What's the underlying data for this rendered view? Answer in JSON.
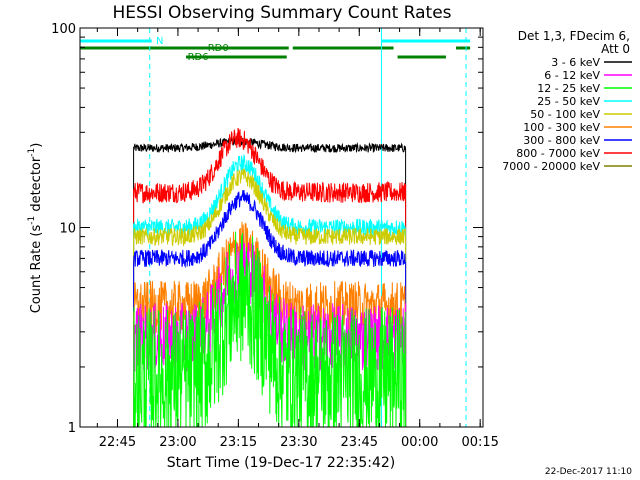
{
  "chart_data": {
    "type": "line",
    "title": "HESSI Observing Summary Count Rates",
    "xlabel": "Start Time (19-Dec-17 22:35:42)",
    "ylabel": "Count Rate (s",
    "ylabel_sup": "-1",
    "ylabel_mid": " detector",
    "ylabel_end": ")",
    "y_scale": "log",
    "ylim": [
      1,
      100
    ],
    "xlim": [
      "22:35:42",
      "00:15:42"
    ],
    "x_ticks": [
      "22:45",
      "23:00",
      "23:15",
      "23:30",
      "23:45",
      "00:00",
      "00:15"
    ],
    "y_ticks": [
      "1",
      "10",
      "100"
    ],
    "data_start": "22:49:00",
    "data_end": "23:56:30",
    "footer_date": "22-Dec-2017 11:10",
    "legend": {
      "header_line1": "Det 1,3, FDecim 6,",
      "header_line2": "Att 0",
      "entries": [
        {
          "label": "3 - 6 keV",
          "color": "#000000"
        },
        {
          "label": "6 - 12 keV",
          "color": "#ff00ff"
        },
        {
          "label": "12 - 25 keV",
          "color": "#00ff00"
        },
        {
          "label": "25 - 50 keV",
          "color": "#00ffff"
        },
        {
          "label": "50 - 100 keV",
          "color": "#cccc00"
        },
        {
          "label": "100 - 300 keV",
          "color": "#ff8000"
        },
        {
          "label": "300 - 800 keV",
          "color": "#0000ff"
        },
        {
          "label": "800 - 7000 keV",
          "color": "#ff0000"
        },
        {
          "label": "7000 - 20000 keV",
          "color": "#808000"
        }
      ]
    },
    "flags": [
      {
        "label": "N",
        "color": "#00ffff",
        "segments": [
          [
            "22:35:42",
            "22:53:30"
          ],
          [
            "23:50:30",
            "00:12:30"
          ]
        ]
      },
      {
        "label": "RD0",
        "color": "#008000",
        "segments": [
          [
            "22:35:42",
            "23:27:30"
          ],
          [
            "23:28:30",
            "23:53:30"
          ],
          [
            "00:09:00",
            "00:12:30"
          ]
        ]
      },
      {
        "label": "RD6",
        "color": "#008000",
        "segments": [
          [
            "23:02:00",
            "23:27:00"
          ],
          [
            "23:54:30",
            "00:06:30"
          ]
        ]
      }
    ],
    "vlines": [
      {
        "time": "22:53:00",
        "color": "#00ffff",
        "style": "dashed"
      },
      {
        "time": "23:50:30",
        "color": "#00ffff",
        "style": "solid"
      },
      {
        "time": "00:11:30",
        "color": "#00ffff",
        "style": "dashed"
      }
    ],
    "series": [
      {
        "name": "3 - 6 keV",
        "color": "#000000",
        "base": 25,
        "peak": 27,
        "peak_time": "23:15:00",
        "width_min": 8,
        "noise": 0.05
      },
      {
        "name": "800 - 7000 keV",
        "color": "#ff0000",
        "base": 15,
        "peak": 28,
        "peak_time": "23:15:00",
        "width_min": 6,
        "noise": 0.12
      },
      {
        "name": "25 - 50 keV",
        "color": "#00ffff",
        "base": 10,
        "peak": 21,
        "peak_time": "23:16:00",
        "width_min": 6,
        "noise": 0.1
      },
      {
        "name": "50 - 100 keV",
        "color": "#cccc00",
        "base": 9,
        "peak": 18,
        "peak_time": "23:16:00",
        "width_min": 6,
        "noise": 0.1
      },
      {
        "name": "300 - 800 keV",
        "color": "#0000ff",
        "base": 7,
        "peak": 14,
        "peak_time": "23:16:00",
        "width_min": 6,
        "noise": 0.1
      },
      {
        "name": "100 - 300 keV",
        "color": "#ff8000",
        "base": 4,
        "peak": 8,
        "peak_time": "23:16:00",
        "width_min": 6,
        "noise": 0.3
      },
      {
        "name": "6 - 12 keV",
        "color": "#ff00ff",
        "base": 2.8,
        "peak": 6.5,
        "peak_time": "23:16:00",
        "width_min": 6,
        "noise": 0.4
      },
      {
        "name": "12 - 25 keV",
        "color": "#00ff00",
        "base": 1.8,
        "peak": 4.5,
        "peak_time": "23:16:00",
        "width_min": 6,
        "noise": 0.8
      }
    ]
  }
}
